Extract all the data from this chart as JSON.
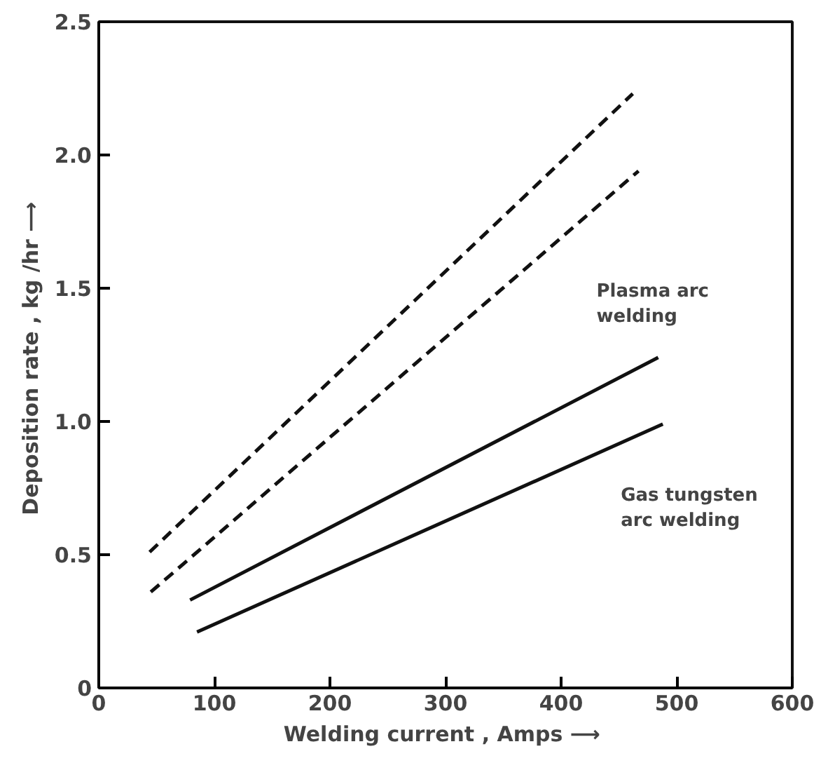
{
  "chart_data": {
    "type": "line",
    "xlabel": "Welding  current , Amps ⟶",
    "ylabel": "Deposition  rate , kg /hr ⟶",
    "xlim": [
      0,
      600
    ],
    "ylim": [
      0,
      2.5
    ],
    "xticks": [
      0,
      100,
      200,
      300,
      400,
      500,
      600
    ],
    "yticks": [
      0,
      {
        "value": 0.5,
        "label": "0.5"
      },
      {
        "value": 1.0,
        "label": "1.0"
      },
      {
        "value": 1.5,
        "label": "1.5"
      },
      {
        "value": 2.0,
        "label": "2.0"
      },
      {
        "value": 2.5,
        "label": "2.5"
      }
    ],
    "grid": false,
    "marker": "none",
    "series": [
      {
        "color": "#111111",
        "line_style": "dashed",
        "x": [
          44,
          462
        ],
        "values": [
          0.51,
          2.23
        ]
      },
      {
        "color": "#111111",
        "line_style": "dashed",
        "x": [
          45,
          467
        ],
        "values": [
          0.36,
          1.94
        ]
      },
      {
        "color": "#111111",
        "line_style": "solid",
        "x": [
          79,
          484
        ],
        "values": [
          0.33,
          1.24
        ]
      },
      {
        "color": "#111111",
        "line_style": "solid",
        "x": [
          85,
          488
        ],
        "values": [
          0.21,
          0.99
        ]
      }
    ],
    "annotations": [
      "Plasma arc\nwelding",
      "Gas tungsten\narc welding"
    ]
  }
}
